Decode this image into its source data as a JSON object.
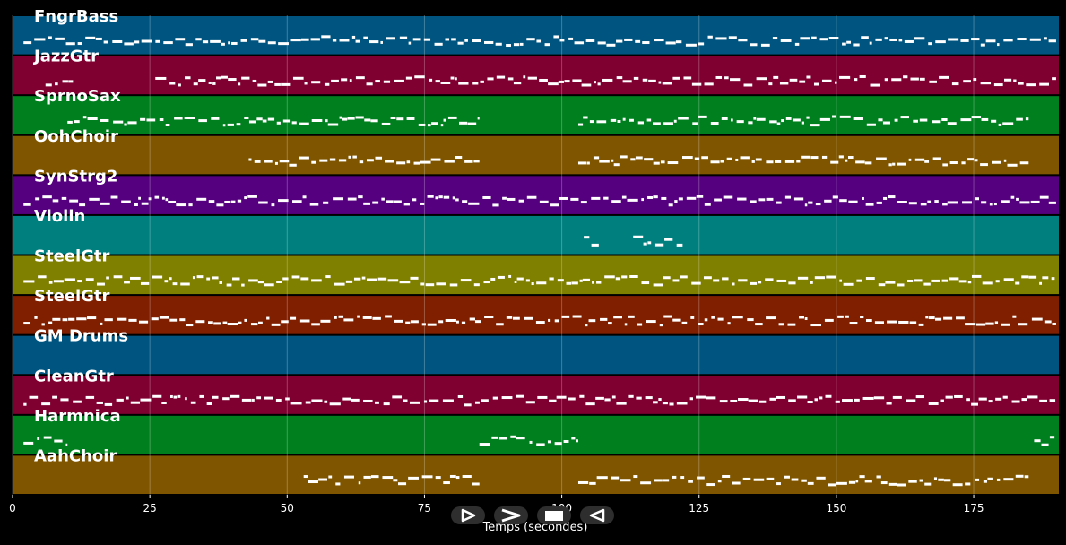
{
  "chart_data": {
    "type": "piano-roll",
    "xlabel": "Temps (secondes)",
    "xlim": [
      0,
      190.5
    ],
    "xticks": [
      0,
      25,
      50,
      75,
      100,
      125,
      150,
      175
    ],
    "grid": true,
    "tracks": [
      {
        "name": "FngrBass",
        "color": "#005580",
        "notes": [
          [
            2,
            190
          ]
        ]
      },
      {
        "name": "JazzGtr",
        "color": "#7f0030",
        "notes": [
          [
            6,
            11
          ],
          [
            26,
            190
          ]
        ]
      },
      {
        "name": "SprnoSax",
        "color": "#007f1f",
        "notes": [
          [
            10,
            85
          ],
          [
            103,
            185
          ]
        ]
      },
      {
        "name": "OohChoir",
        "color": "#7f5500",
        "notes": [
          [
            43,
            85
          ],
          [
            103,
            185
          ]
        ]
      },
      {
        "name": "SynStrg2",
        "color": "#55007f",
        "notes": [
          [
            2,
            190
          ]
        ]
      },
      {
        "name": "Violin",
        "color": "#007f7f",
        "notes": [
          [
            104,
            107
          ],
          [
            113,
            122
          ]
        ]
      },
      {
        "name": "SteelGtr",
        "color": "#7f7f00",
        "notes": [
          [
            2,
            190
          ]
        ]
      },
      {
        "name": "SteelGtr",
        "color": "#7f1f00",
        "notes": [
          [
            2,
            190
          ]
        ]
      },
      {
        "name": "GM Drums",
        "color": "#005580",
        "notes": []
      },
      {
        "name": "CleanGtr",
        "color": "#7f0030",
        "notes": [
          [
            2,
            190
          ]
        ]
      },
      {
        "name": "Harmnica",
        "color": "#007f1f",
        "notes": [
          [
            2,
            10
          ],
          [
            85,
            103
          ],
          [
            186,
            190
          ]
        ]
      },
      {
        "name": "AahChoir",
        "color": "#7f5500",
        "notes": [
          [
            53,
            85
          ],
          [
            103,
            185
          ]
        ]
      }
    ]
  },
  "controls": [
    {
      "name": "play-button",
      "icon": "play-triangle-icon"
    },
    {
      "name": "forward-button",
      "icon": "chevron-right-icon"
    },
    {
      "name": "stop-button",
      "icon": "stop-square-icon"
    },
    {
      "name": "rewind-button",
      "icon": "triangle-left-icon"
    }
  ]
}
